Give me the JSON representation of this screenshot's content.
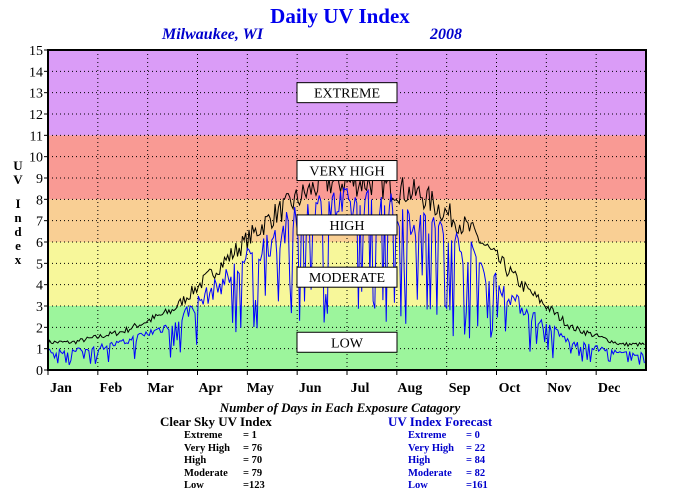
{
  "title": "Daily UV Index",
  "location": "Milwaukee, WI",
  "year": "2008",
  "chart_data": {
    "type": "line",
    "ylabel": "UV Index",
    "ylim": [
      0,
      15
    ],
    "yticks": [
      "0",
      "1",
      "2",
      "3",
      "4",
      "5",
      "6",
      "7",
      "8",
      "9",
      "10",
      "11",
      "12",
      "13",
      "14",
      "15"
    ],
    "months": [
      "Jan",
      "Feb",
      "Mar",
      "Apr",
      "May",
      "Jun",
      "Jul",
      "Aug",
      "Sep",
      "Oct",
      "Nov",
      "Dec"
    ],
    "grid": true,
    "bands": [
      {
        "label": "LOW",
        "from": 0,
        "to": 3,
        "color": "#9cf59c"
      },
      {
        "label": "MODERATE",
        "from": 3,
        "to": 6,
        "color": "#f7f79a"
      },
      {
        "label": "HIGH",
        "from": 6,
        "to": 8,
        "color": "#f9cf94"
      },
      {
        "label": "VERY HIGH",
        "from": 8,
        "to": 11,
        "color": "#f99a94"
      },
      {
        "label": "EXTREME",
        "from": 11,
        "to": 15,
        "color": "#da9cf7"
      }
    ],
    "series": [
      {
        "name": "Clear Sky UV Index",
        "color": "#000000",
        "type": "daily-line",
        "monthly_typical": [
          1.3,
          1.8,
          2.8,
          5.0,
          7.2,
          8.8,
          8.8,
          8.2,
          6.5,
          4.0,
          2.0,
          1.2
        ]
      },
      {
        "name": "UV Index Forecast",
        "color": "#0000ff",
        "type": "daily-line",
        "monthly_typical": [
          0.9,
          1.3,
          2.2,
          4.2,
          6.3,
          7.8,
          7.8,
          7.2,
          5.5,
          3.0,
          1.3,
          0.8
        ]
      }
    ]
  },
  "stats": {
    "heading": "Number of Days in Each Exposure Catagory",
    "clear_sky": {
      "title": "Clear Sky UV Index",
      "rows": [
        {
          "label": "Extreme",
          "value": "=   1"
        },
        {
          "label": "Very High",
          "value": "= 76"
        },
        {
          "label": "High",
          "value": "= 70"
        },
        {
          "label": "Moderate",
          "value": "= 79"
        },
        {
          "label": "Low",
          "value": "=123"
        }
      ]
    },
    "forecast": {
      "title": "UV Index Forecast",
      "rows": [
        {
          "label": "Extreme",
          "value": "=   0"
        },
        {
          "label": "Very High",
          "value": "= 22"
        },
        {
          "label": "High",
          "value": "= 84"
        },
        {
          "label": "Moderate",
          "value": "= 82"
        },
        {
          "label": "Low",
          "value": "=161"
        }
      ]
    }
  }
}
